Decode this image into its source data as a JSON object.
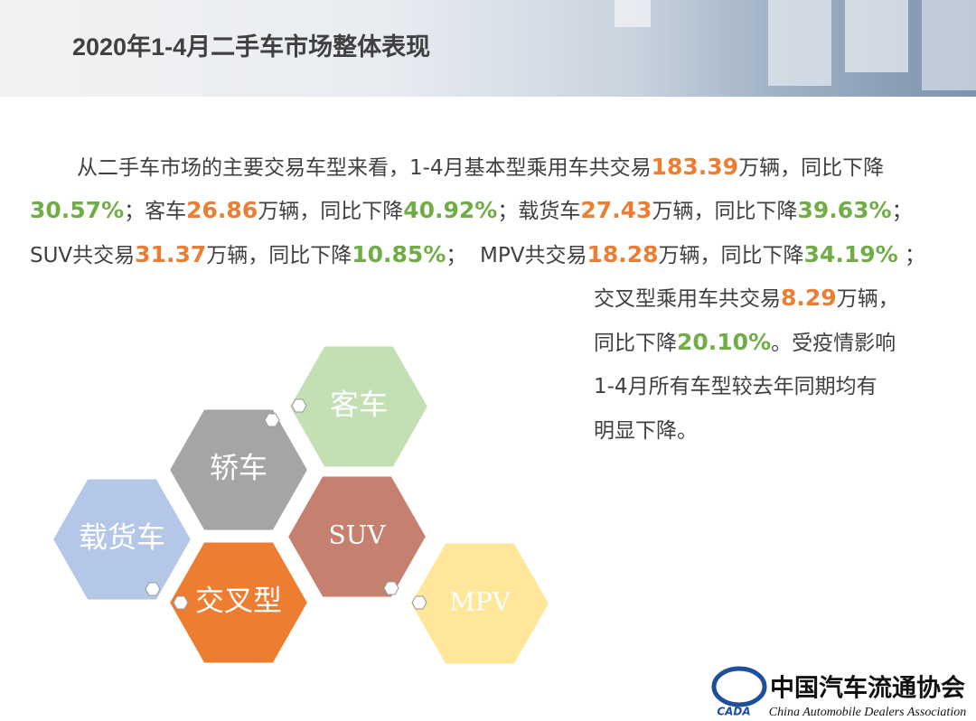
{
  "header": {
    "title": "2020年1-4月二手车市场整体表现"
  },
  "body": {
    "lines": [
      [
        {
          "text": "从二手车市场的主要交易车型来看，1-4月基本型乘用车共交易",
          "color": "#404040"
        },
        {
          "text": "183.39",
          "color": "#ed7d31"
        },
        {
          "text": "万辆，同比下降",
          "color": "#404040"
        }
      ],
      [
        {
          "text": "30.57%",
          "color": "#70ad47"
        },
        {
          "text": "；客车",
          "color": "#404040"
        },
        {
          "text": "26.86",
          "color": "#ed7d31"
        },
        {
          "text": "万辆，同比下降",
          "color": "#404040"
        },
        {
          "text": "40.92%",
          "color": "#70ad47"
        },
        {
          "text": "；载货车",
          "color": "#404040"
        },
        {
          "text": "27.43",
          "color": "#ed7d31"
        },
        {
          "text": "万辆，同比下降",
          "color": "#404040"
        },
        {
          "text": "39.63%",
          "color": "#70ad47"
        },
        {
          "text": "；",
          "color": "#404040"
        }
      ],
      [
        {
          "text": "SUV共交易",
          "color": "#404040"
        },
        {
          "text": "31.37",
          "color": "#ed7d31"
        },
        {
          "text": "万辆，同比下降",
          "color": "#404040"
        },
        {
          "text": "10.85%",
          "color": "#70ad47"
        },
        {
          "text": "；  MPV共交易",
          "color": "#404040"
        },
        {
          "text": "18.28",
          "color": "#ed7d31"
        },
        {
          "text": "万辆，同比下降",
          "color": "#404040"
        },
        {
          "text": "34.19%",
          "color": "#70ad47"
        },
        {
          "text": " ；",
          "color": "#404040"
        }
      ],
      [
        {
          "text": "交叉型乘用车共交易",
          "color": "#404040"
        },
        {
          "text": "8.29",
          "color": "#ed7d31"
        },
        {
          "text": "万辆，",
          "color": "#404040"
        }
      ],
      [
        {
          "text": "同比下降",
          "color": "#404040"
        },
        {
          "text": "20.10%",
          "color": "#70ad47"
        },
        {
          "text": "。受疫情影响",
          "color": "#404040"
        }
      ],
      [
        {
          "text": "1-4月所有车型较去年同期均有",
          "color": "#404040"
        }
      ],
      [
        {
          "text": "明显下降。",
          "color": "#404040"
        }
      ]
    ]
  },
  "hexagons": [
    {
      "label": "客车",
      "color": "#c5dfb4"
    },
    {
      "label": "轿车",
      "color": "#a5a5a5"
    },
    {
      "label": "载货车",
      "color": "#b4c7e7"
    },
    {
      "label": "SUV",
      "color": "#c5806f"
    },
    {
      "label": "交叉型",
      "color": "#ed7d31"
    },
    {
      "label": "MPV",
      "color": "#ffe699"
    }
  ],
  "logo": {
    "name": "中国汽车流通协会",
    "english": "China Automobile Dealers Association",
    "abbr": "CADA"
  }
}
